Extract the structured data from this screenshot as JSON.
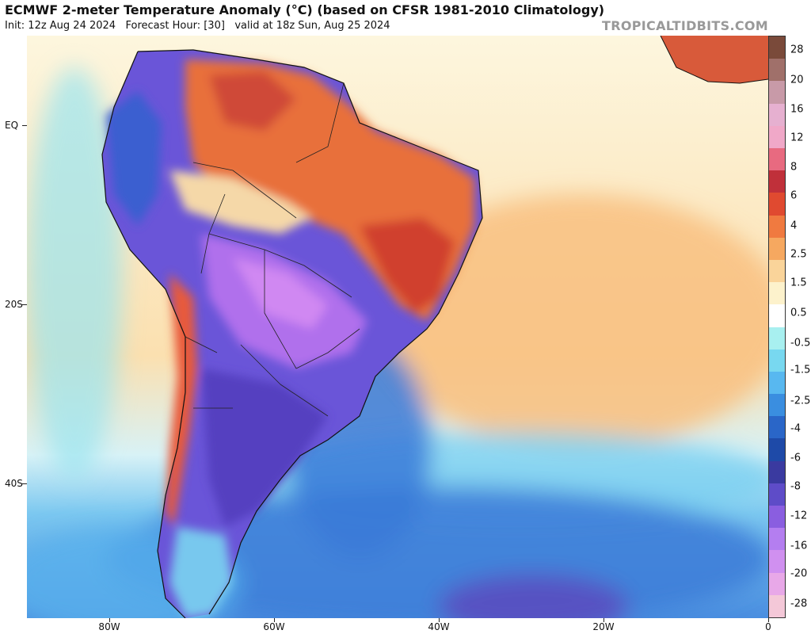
{
  "header": {
    "title": "ECMWF 2-meter Temperature Anomaly (°C) (based on CFSR 1981-2010 Climatology)",
    "init": "Init: 12z Aug 24 2024",
    "forecast_hour": "Forecast Hour: [30]",
    "valid": "valid at 18z Sun, Aug 25 2024",
    "source": "TROPICALTIDBITS.COM"
  },
  "map": {
    "lat_labels": [
      "EQ",
      "20S",
      "40S"
    ],
    "lon_labels": [
      "80W",
      "60W",
      "40W",
      "20W",
      "0"
    ]
  },
  "colorbar": {
    "labels": [
      "28",
      "20",
      "16",
      "12",
      "8",
      "6",
      "4",
      "2.5",
      "1.5",
      "0.5",
      "-0.5",
      "-1.5",
      "-2.5",
      "-4",
      "-6",
      "-8",
      "-12",
      "-16",
      "-20",
      "-28"
    ],
    "colors": [
      "#7a4a3a",
      "#a0706a",
      "#c89aa8",
      "#e6b0d0",
      "#f0a8c8",
      "#e86a80",
      "#c0303a",
      "#e04a30",
      "#f07a40",
      "#f6a860",
      "#fad49a",
      "#fdf2cc",
      "#ffffff",
      "#a8f0f0",
      "#78d8f0",
      "#58b8f0",
      "#3a8ee0",
      "#2a66c8",
      "#1e4aa8",
      "#3a3aa0",
      "#5e4cc8",
      "#8a5ee0",
      "#b47ef0",
      "#d090f0",
      "#e8a8e8",
      "#f4c8d8"
    ]
  }
}
